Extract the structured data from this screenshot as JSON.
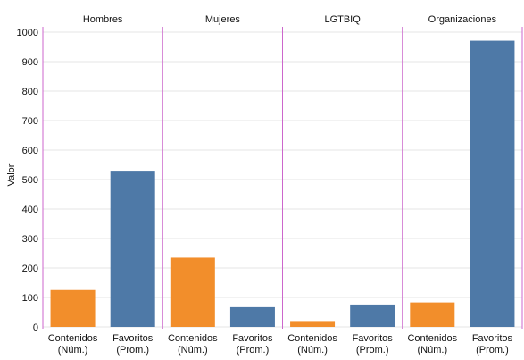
{
  "chart_data": {
    "type": "bar",
    "panels": [
      "Hombres",
      "Mujeres",
      "LGTBIQ",
      "Organizaciones"
    ],
    "categories": [
      [
        "Contenidos",
        "(Núm.)"
      ],
      [
        "Favoritos",
        "(Prom.)"
      ]
    ],
    "category_colors": [
      "#f28e2b",
      "#4e79a7"
    ],
    "values": [
      [
        125,
        530
      ],
      [
        235,
        67
      ],
      [
        20,
        76
      ],
      [
        83,
        971
      ]
    ],
    "ylabel": "Valor",
    "ylim": [
      0,
      1000
    ],
    "yticks": [
      0,
      100,
      200,
      300,
      400,
      500,
      600,
      700,
      800,
      900,
      1000
    ],
    "separator_color": "#cc66cc",
    "grid": true
  }
}
